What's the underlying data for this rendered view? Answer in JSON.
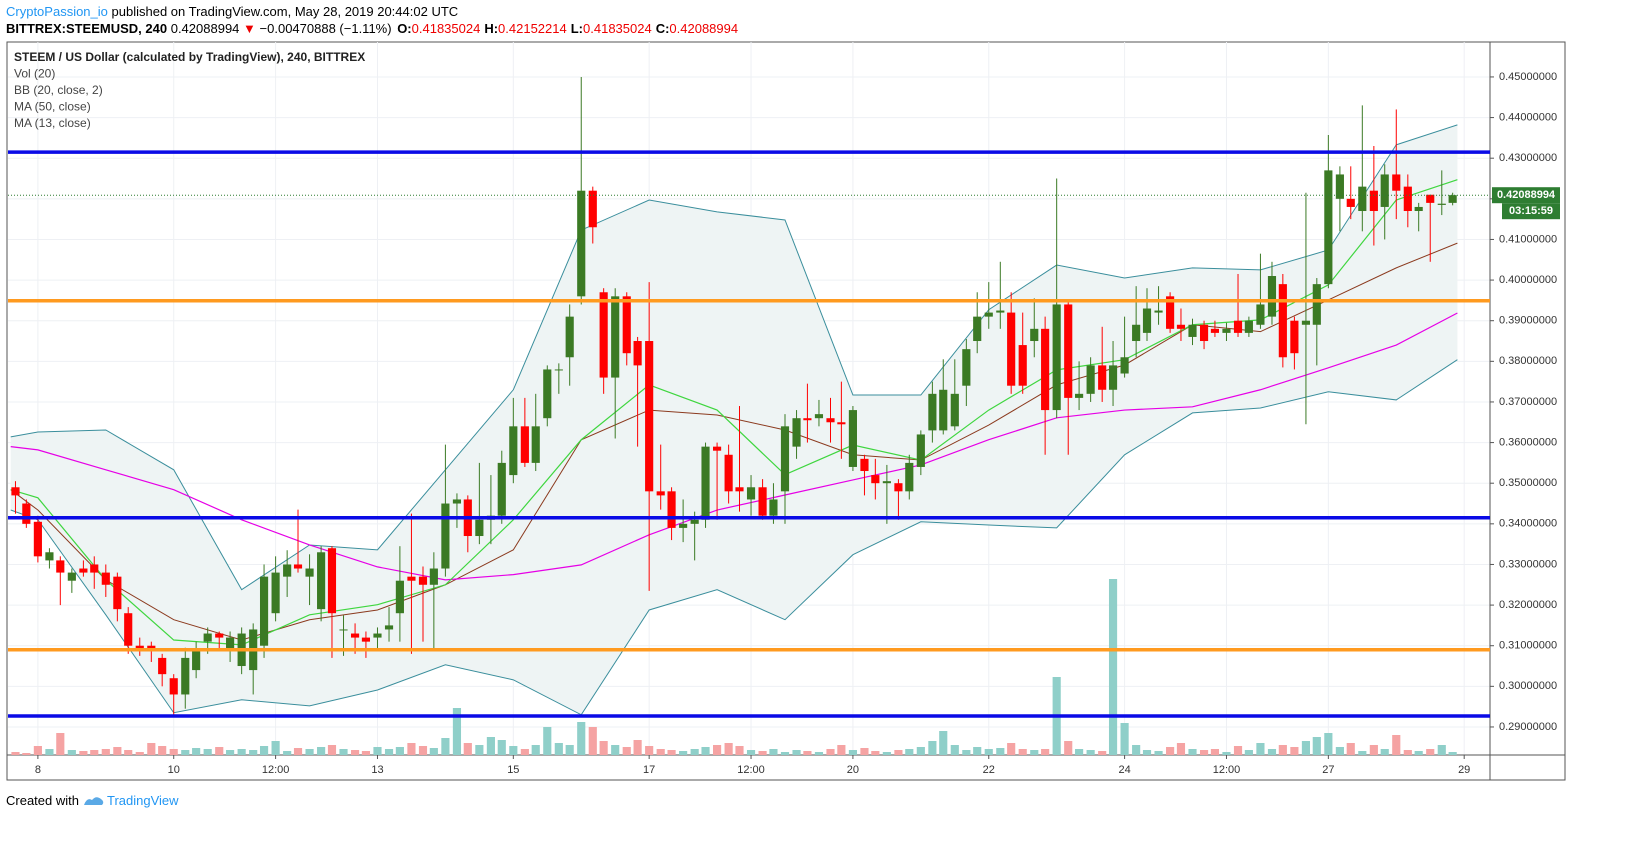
{
  "header": {
    "author": "CryptoPassion_io",
    "published": "published on TradingView.com, May 28, 2019 20:44:02 UTC",
    "symbol": "BITTREX:STEEMUSD, 240",
    "price": "0.42088994",
    "change_arrow": "▼",
    "change": "−0.00470888 (−1.11%)",
    "ohlc": [
      {
        "label": "O:",
        "value": "0.41835024"
      },
      {
        "label": "H:",
        "value": "0.42152214"
      },
      {
        "label": "L:",
        "value": "0.41835024"
      },
      {
        "label": "C:",
        "value": "0.42088994"
      }
    ]
  },
  "footer": {
    "created": "Created with",
    "brand": "TradingView"
  },
  "chart_data": {
    "type": "candlestick",
    "title": "STEEM / US Dollar (calculated by TradingView), 240, BITTREX",
    "volume_name": "Vol (20)",
    "up_color": "#3b7a24",
    "down_color": "#ff0000",
    "volume_up_color": "#8fcfc9",
    "volume_down_color": "#f5a3a3",
    "xlim": [
      7.56,
      29.38
    ],
    "xticks": [
      8,
      10,
      {
        "value": 11.5,
        "label": "12:00"
      },
      13,
      15,
      17,
      {
        "value": 18.5,
        "label": "12:00"
      },
      20,
      22,
      24,
      {
        "value": 25.5,
        "label": "12:00"
      },
      27,
      29
    ],
    "ylim": [
      0.2831,
      0.4586
    ],
    "yticks": [
      {
        "value": 0.29,
        "label": "0.29000000"
      },
      {
        "value": 0.3,
        "label": "0.30000000"
      },
      {
        "value": 0.31,
        "label": "0.31000000"
      },
      {
        "value": 0.32,
        "label": "0.32000000"
      },
      {
        "value": 0.33,
        "label": "0.33000000"
      },
      {
        "value": 0.34,
        "label": "0.34000000"
      },
      {
        "value": 0.35,
        "label": "0.35000000"
      },
      {
        "value": 0.36,
        "label": "0.36000000"
      },
      {
        "value": 0.37,
        "label": "0.37000000"
      },
      {
        "value": 0.38,
        "label": "0.38000000"
      },
      {
        "value": 0.39,
        "label": "0.39000000"
      },
      {
        "value": 0.4,
        "label": "0.40000000"
      },
      {
        "value": 0.41,
        "label": "0.41000000"
      },
      {
        "value": 0.42,
        "label": "0.42000000"
      },
      {
        "value": 0.43,
        "label": "0.43000000"
      },
      {
        "value": 0.44,
        "label": "0.44000000"
      },
      {
        "value": 0.45,
        "label": "0.45000000"
      }
    ],
    "grid": true,
    "x": [
      7.67,
      7.83,
      8,
      8.17,
      8.33,
      8.5,
      8.67,
      8.83,
      9,
      9.17,
      9.33,
      9.5,
      9.67,
      9.83,
      10,
      10.17,
      10.33,
      10.5,
      10.67,
      10.83,
      11,
      11.17,
      11.33,
      11.5,
      11.67,
      11.83,
      12,
      12.17,
      12.33,
      12.5,
      12.67,
      12.83,
      13,
      13.17,
      13.33,
      13.5,
      13.67,
      13.83,
      14,
      14.17,
      14.33,
      14.5,
      14.67,
      14.83,
      15,
      15.17,
      15.33,
      15.5,
      15.67,
      15.83,
      16,
      16.17,
      16.33,
      16.5,
      16.67,
      16.83,
      17,
      17.17,
      17.33,
      17.5,
      17.67,
      17.83,
      18,
      18.17,
      18.33,
      18.5,
      18.67,
      18.83,
      19,
      19.17,
      19.33,
      19.5,
      19.67,
      19.83,
      20,
      20.17,
      20.33,
      20.5,
      20.67,
      20.83,
      21,
      21.17,
      21.33,
      21.5,
      21.67,
      21.83,
      22,
      22.17,
      22.33,
      22.5,
      22.67,
      22.83,
      23,
      23.17,
      23.33,
      23.5,
      23.67,
      23.83,
      24,
      24.17,
      24.33,
      24.5,
      24.67,
      24.83,
      25,
      25.17,
      25.33,
      25.5,
      25.67,
      25.83,
      26,
      26.17,
      26.33,
      26.5,
      26.67,
      26.83,
      27,
      27.17,
      27.33,
      27.5,
      27.67,
      27.83,
      28,
      28.17,
      28.33,
      28.5,
      28.67,
      28.83
    ],
    "open": [
      0.349,
      0.345,
      0.3405,
      0.331,
      0.331,
      0.326,
      0.329,
      0.33,
      0.328,
      0.327,
      0.318,
      0.31,
      0.31,
      0.307,
      0.302,
      0.298,
      0.304,
      0.311,
      0.313,
      0.309,
      0.305,
      0.304,
      0.31,
      0.318,
      0.327,
      0.33,
      0.327,
      0.319,
      0.334,
      0.314,
      0.313,
      0.312,
      0.312,
      0.314,
      0.318,
      0.327,
      0.327,
      0.325,
      0.329,
      0.345,
      0.346,
      0.337,
      0.341,
      0.342,
      0.352,
      0.364,
      0.355,
      0.366,
      0.378,
      0.381,
      0.396,
      0.422,
      0.397,
      0.376,
      0.396,
      0.385,
      0.385,
      0.348,
      0.348,
      0.339,
      0.34,
      0.341,
      0.359,
      0.357,
      0.349,
      0.346,
      0.349,
      0.342,
      0.348,
      0.359,
      0.366,
      0.366,
      0.366,
      0.365,
      0.354,
      0.356,
      0.352,
      0.35,
      0.35,
      0.348,
      0.354,
      0.363,
      0.363,
      0.364,
      0.374,
      0.385,
      0.391,
      0.392,
      0.392,
      0.384,
      0.385,
      0.388,
      0.368,
      0.394,
      0.371,
      0.372,
      0.379,
      0.373,
      0.377,
      0.385,
      0.387,
      0.392,
      0.396,
      0.389,
      0.386,
      0.389,
      0.388,
      0.387,
      0.39,
      0.387,
      0.389,
      0.391,
      0.399,
      0.39,
      0.389,
      0.389,
      0.399,
      0.42,
      0.42,
      0.417,
      0.422,
      0.418,
      0.426,
      0.423,
      0.417,
      0.421,
      0.4185,
      0.419
    ],
    "high": [
      0.3505,
      0.346,
      0.342,
      0.334,
      0.332,
      0.329,
      0.331,
      0.332,
      0.33,
      0.328,
      0.3195,
      0.312,
      0.311,
      0.308,
      0.303,
      0.3095,
      0.311,
      0.3145,
      0.3135,
      0.3135,
      0.3145,
      0.3155,
      0.33,
      0.332,
      0.3335,
      0.3435,
      0.3325,
      0.3345,
      0.3345,
      0.3175,
      0.3155,
      0.3135,
      0.3145,
      0.3195,
      0.3345,
      0.3425,
      0.3295,
      0.333,
      0.3595,
      0.3475,
      0.347,
      0.355,
      0.352,
      0.358,
      0.371,
      0.371,
      0.372,
      0.379,
      0.3795,
      0.394,
      0.45,
      0.423,
      0.398,
      0.398,
      0.397,
      0.386,
      0.3995,
      0.3595,
      0.349,
      0.346,
      0.343,
      0.36,
      0.36,
      0.3595,
      0.369,
      0.352,
      0.351,
      0.35,
      0.367,
      0.368,
      0.3745,
      0.3705,
      0.371,
      0.375,
      0.369,
      0.357,
      0.356,
      0.3545,
      0.351,
      0.357,
      0.363,
      0.375,
      0.3805,
      0.3805,
      0.3855,
      0.397,
      0.3995,
      0.4045,
      0.397,
      0.392,
      0.3955,
      0.391,
      0.425,
      0.395,
      0.38,
      0.381,
      0.3885,
      0.385,
      0.391,
      0.3985,
      0.398,
      0.3985,
      0.397,
      0.393,
      0.3905,
      0.39,
      0.39,
      0.3895,
      0.4015,
      0.391,
      0.4065,
      0.4045,
      0.4015,
      0.391,
      0.4215,
      0.4005,
      0.4357,
      0.428,
      0.428,
      0.443,
      0.433,
      0.4285,
      0.442,
      0.426,
      0.419,
      0.421,
      0.427,
      0.4215
    ],
    "low": [
      0.3425,
      0.339,
      0.3305,
      0.329,
      0.32,
      0.323,
      0.327,
      0.324,
      0.322,
      0.316,
      0.308,
      0.3075,
      0.306,
      0.3,
      0.2925,
      0.2945,
      0.302,
      0.308,
      0.309,
      0.306,
      0.303,
      0.298,
      0.307,
      0.316,
      0.322,
      0.328,
      0.32,
      0.316,
      0.307,
      0.3075,
      0.308,
      0.307,
      0.309,
      0.311,
      0.311,
      0.308,
      0.311,
      0.309,
      0.327,
      0.339,
      0.333,
      0.335,
      0.335,
      0.34,
      0.35,
      0.354,
      0.353,
      0.364,
      0.372,
      0.374,
      0.394,
      0.409,
      0.372,
      0.361,
      0.379,
      0.359,
      0.3235,
      0.3435,
      0.336,
      0.3355,
      0.331,
      0.339,
      0.341,
      0.345,
      0.343,
      0.342,
      0.341,
      0.34,
      0.34,
      0.356,
      0.36,
      0.364,
      0.36,
      0.356,
      0.353,
      0.347,
      0.346,
      0.34,
      0.341,
      0.346,
      0.352,
      0.36,
      0.362,
      0.363,
      0.369,
      0.382,
      0.388,
      0.388,
      0.372,
      0.372,
      0.381,
      0.357,
      0.366,
      0.357,
      0.368,
      0.37,
      0.37,
      0.369,
      0.376,
      0.381,
      0.385,
      0.389,
      0.387,
      0.385,
      0.384,
      0.383,
      0.386,
      0.385,
      0.386,
      0.386,
      0.388,
      0.389,
      0.3785,
      0.378,
      0.3645,
      0.379,
      0.398,
      0.412,
      0.415,
      0.412,
      0.4085,
      0.41,
      0.415,
      0.413,
      0.412,
      0.4045,
      0.416,
      0.4184
    ],
    "close": [
      0.347,
      0.34,
      0.332,
      0.333,
      0.328,
      0.328,
      0.328,
      0.328,
      0.325,
      0.319,
      0.31,
      0.309,
      0.309,
      0.303,
      0.298,
      0.307,
      0.309,
      0.313,
      0.312,
      0.312,
      0.313,
      0.314,
      0.327,
      0.328,
      0.33,
      0.329,
      0.329,
      0.333,
      0.318,
      0.314,
      0.312,
      0.311,
      0.313,
      0.315,
      0.326,
      0.326,
      0.325,
      0.329,
      0.345,
      0.346,
      0.337,
      0.341,
      0.342,
      0.355,
      0.364,
      0.355,
      0.364,
      0.378,
      0.378,
      0.391,
      0.422,
      0.413,
      0.376,
      0.396,
      0.382,
      0.379,
      0.348,
      0.347,
      0.339,
      0.34,
      0.341,
      0.359,
      0.358,
      0.348,
      0.348,
      0.349,
      0.342,
      0.346,
      0.364,
      0.366,
      0.3655,
      0.367,
      0.365,
      0.3645,
      0.368,
      0.353,
      0.35,
      0.3505,
      0.348,
      0.355,
      0.362,
      0.372,
      0.373,
      0.372,
      0.383,
      0.391,
      0.392,
      0.3925,
      0.374,
      0.374,
      0.388,
      0.368,
      0.394,
      0.371,
      0.372,
      0.379,
      0.373,
      0.379,
      0.381,
      0.389,
      0.393,
      0.3925,
      0.388,
      0.388,
      0.389,
      0.385,
      0.387,
      0.388,
      0.387,
      0.39,
      0.394,
      0.401,
      0.381,
      0.382,
      0.39,
      0.399,
      0.427,
      0.426,
      0.418,
      0.423,
      0.417,
      0.426,
      0.422,
      0.417,
      0.418,
      0.419,
      0.4188,
      0.4209
    ],
    "volume": [
      3,
      2,
      9,
      6,
      22,
      5,
      4,
      5,
      6,
      8,
      5,
      3,
      12,
      9,
      6,
      5,
      7,
      6,
      8,
      5,
      6,
      5,
      9,
      14,
      4,
      7,
      6,
      8,
      10,
      6,
      5,
      4,
      8,
      6,
      8,
      12,
      9,
      7,
      17,
      47,
      12,
      10,
      18,
      15,
      9,
      6,
      10,
      28,
      12,
      10,
      33,
      28,
      14,
      10,
      8,
      15,
      9,
      6,
      5,
      4,
      6,
      8,
      10,
      12,
      9,
      5,
      4,
      6,
      3,
      5,
      4,
      3,
      6,
      10,
      5,
      7,
      4,
      3,
      5,
      6,
      8,
      14,
      24,
      10,
      5,
      8,
      6,
      7,
      12,
      6,
      5,
      6,
      78,
      14,
      6,
      5,
      4,
      176,
      32,
      10,
      5,
      4,
      8,
      12,
      6,
      5,
      6,
      3,
      9,
      5,
      12,
      6,
      10,
      8,
      14,
      18,
      22,
      8,
      12,
      4,
      10,
      6,
      20,
      5,
      4,
      6,
      10,
      3
    ],
    "bollinger": {
      "name": "BB (20, close, 2)",
      "line_color": "#3a8e9c",
      "basis_color": "#8b3a1e",
      "fill": "#eef4f4",
      "x": [
        7.6,
        8,
        9,
        10,
        11,
        12,
        13,
        14,
        15,
        16,
        17,
        18,
        19,
        20,
        21,
        22,
        23,
        24,
        25,
        26,
        27,
        28,
        28.9
      ],
      "upper": [
        0.3614,
        0.3626,
        0.3631,
        0.3533,
        0.3238,
        0.3348,
        0.3336,
        0.3533,
        0.373,
        0.4123,
        0.4197,
        0.4168,
        0.4148,
        0.3717,
        0.3717,
        0.3927,
        0.4037,
        0.4005,
        0.403,
        0.4025,
        0.4074,
        0.4333,
        0.4382
      ],
      "basis": [
        0.3484,
        0.3434,
        0.3262,
        0.3164,
        0.3114,
        0.3164,
        0.3188,
        0.325,
        0.3336,
        0.3607,
        0.368,
        0.3668,
        0.3631,
        0.357,
        0.3557,
        0.3643,
        0.3742,
        0.3791,
        0.389,
        0.3873,
        0.3951,
        0.403,
        0.4091
      ],
      "lower": [
        0.3434,
        0.341,
        0.3176,
        0.2935,
        0.2967,
        0.2952,
        0.2991,
        0.3053,
        0.3016,
        0.293,
        0.3188,
        0.3238,
        0.3164,
        0.3324,
        0.3405,
        0.3397,
        0.339,
        0.357,
        0.3673,
        0.3685,
        0.3725,
        0.3705,
        0.3804
      ]
    },
    "series": [
      {
        "name": "MA (50, close)",
        "color": "#e600e6",
        "x": [
          7.6,
          8,
          9,
          10,
          11,
          12,
          13,
          14,
          15,
          16,
          17,
          18,
          19,
          20,
          21,
          22,
          23,
          24,
          25,
          26,
          27,
          28,
          28.9
        ],
        "values": [
          0.359,
          0.3582,
          0.3533,
          0.3484,
          0.341,
          0.3348,
          0.3294,
          0.3262,
          0.3275,
          0.3299,
          0.3373,
          0.3434,
          0.3471,
          0.3508,
          0.3545,
          0.3607,
          0.3661,
          0.368,
          0.3688,
          0.373,
          0.3784,
          0.384,
          0.3919
        ]
      },
      {
        "name": "MA (13, close)",
        "color": "#3fd63f",
        "x": [
          7.6,
          8,
          9,
          10,
          11,
          12,
          13,
          14,
          15,
          16,
          17,
          18,
          19,
          20,
          21,
          22,
          23,
          24,
          25,
          26,
          27,
          28,
          28.9
        ],
        "values": [
          0.3484,
          0.3464,
          0.3262,
          0.3114,
          0.3102,
          0.3176,
          0.3201,
          0.325,
          0.341,
          0.3607,
          0.3742,
          0.368,
          0.3521,
          0.3594,
          0.3557,
          0.368,
          0.3779,
          0.3804,
          0.389,
          0.3902,
          0.3988,
          0.4197,
          0.4247
        ]
      }
    ],
    "hlines": [
      {
        "value": 0.4315,
        "color": "#0a0ae6"
      },
      {
        "value": 0.3949,
        "color": "#ff9a1f"
      },
      {
        "value": 0.3415,
        "color": "#0a0ae6"
      },
      {
        "value": 0.309,
        "color": "#ff9a1f"
      },
      {
        "value": 0.2927,
        "color": "#0a0ae6"
      }
    ],
    "last_price": {
      "value": 0.42088994,
      "color": "#2e7d32",
      "countdown": "03:15:59"
    }
  }
}
